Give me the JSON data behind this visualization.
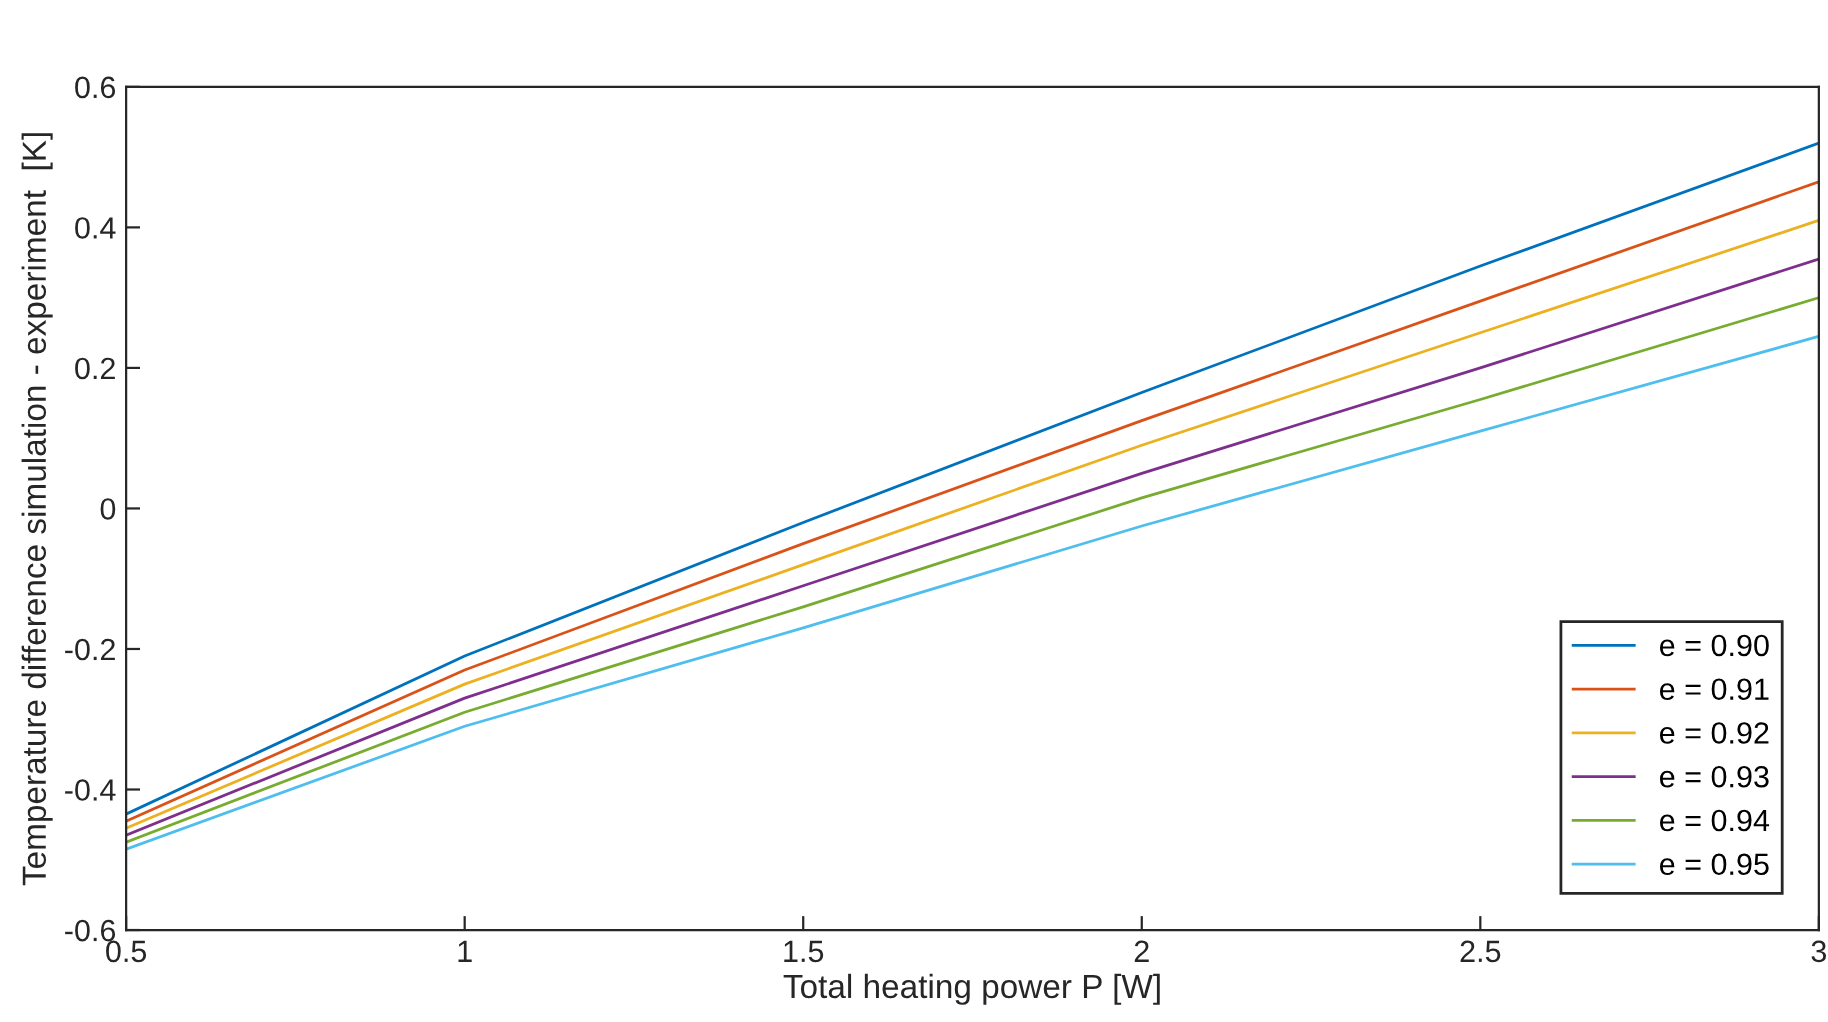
{
  "chart_data": {
    "type": "line",
    "xlabel": "Total heating power P [W]",
    "ylabel": "Temperature difference simulation - experiment  [K]",
    "x": [
      0.5,
      1,
      1.5,
      2,
      2.5,
      3
    ],
    "series": [
      {
        "name": "e = 0.90",
        "color": "#0072bd",
        "values": [
          -0.435,
          -0.21,
          -0.02,
          0.165,
          0.345,
          0.52
        ]
      },
      {
        "name": "e = 0.91",
        "color": "#d95319",
        "values": [
          -0.445,
          -0.23,
          -0.05,
          0.125,
          0.295,
          0.465
        ]
      },
      {
        "name": "e = 0.92",
        "color": "#edb120",
        "values": [
          -0.455,
          -0.25,
          -0.08,
          0.09,
          0.25,
          0.41
        ]
      },
      {
        "name": "e = 0.93",
        "color": "#7e2f8e",
        "values": [
          -0.465,
          -0.27,
          -0.11,
          0.05,
          0.2,
          0.355
        ]
      },
      {
        "name": "e = 0.94",
        "color": "#77ac30",
        "values": [
          -0.475,
          -0.29,
          -0.14,
          0.015,
          0.155,
          0.3
        ]
      },
      {
        "name": "e = 0.95",
        "color": "#4dbeee",
        "values": [
          -0.485,
          -0.31,
          -0.17,
          -0.025,
          0.11,
          0.245
        ]
      }
    ],
    "xlim": [
      0.5,
      3
    ],
    "xticks": [
      0.5,
      1,
      1.5,
      2,
      2.5,
      3
    ],
    "ylim": [
      -0.6,
      0.6
    ],
    "yticks": [
      -0.6,
      -0.4,
      -0.2,
      0,
      0.2,
      0.4,
      0.6
    ],
    "grid": false,
    "legend": "bottom right",
    "marker": "none",
    "line_style": "solid"
  }
}
